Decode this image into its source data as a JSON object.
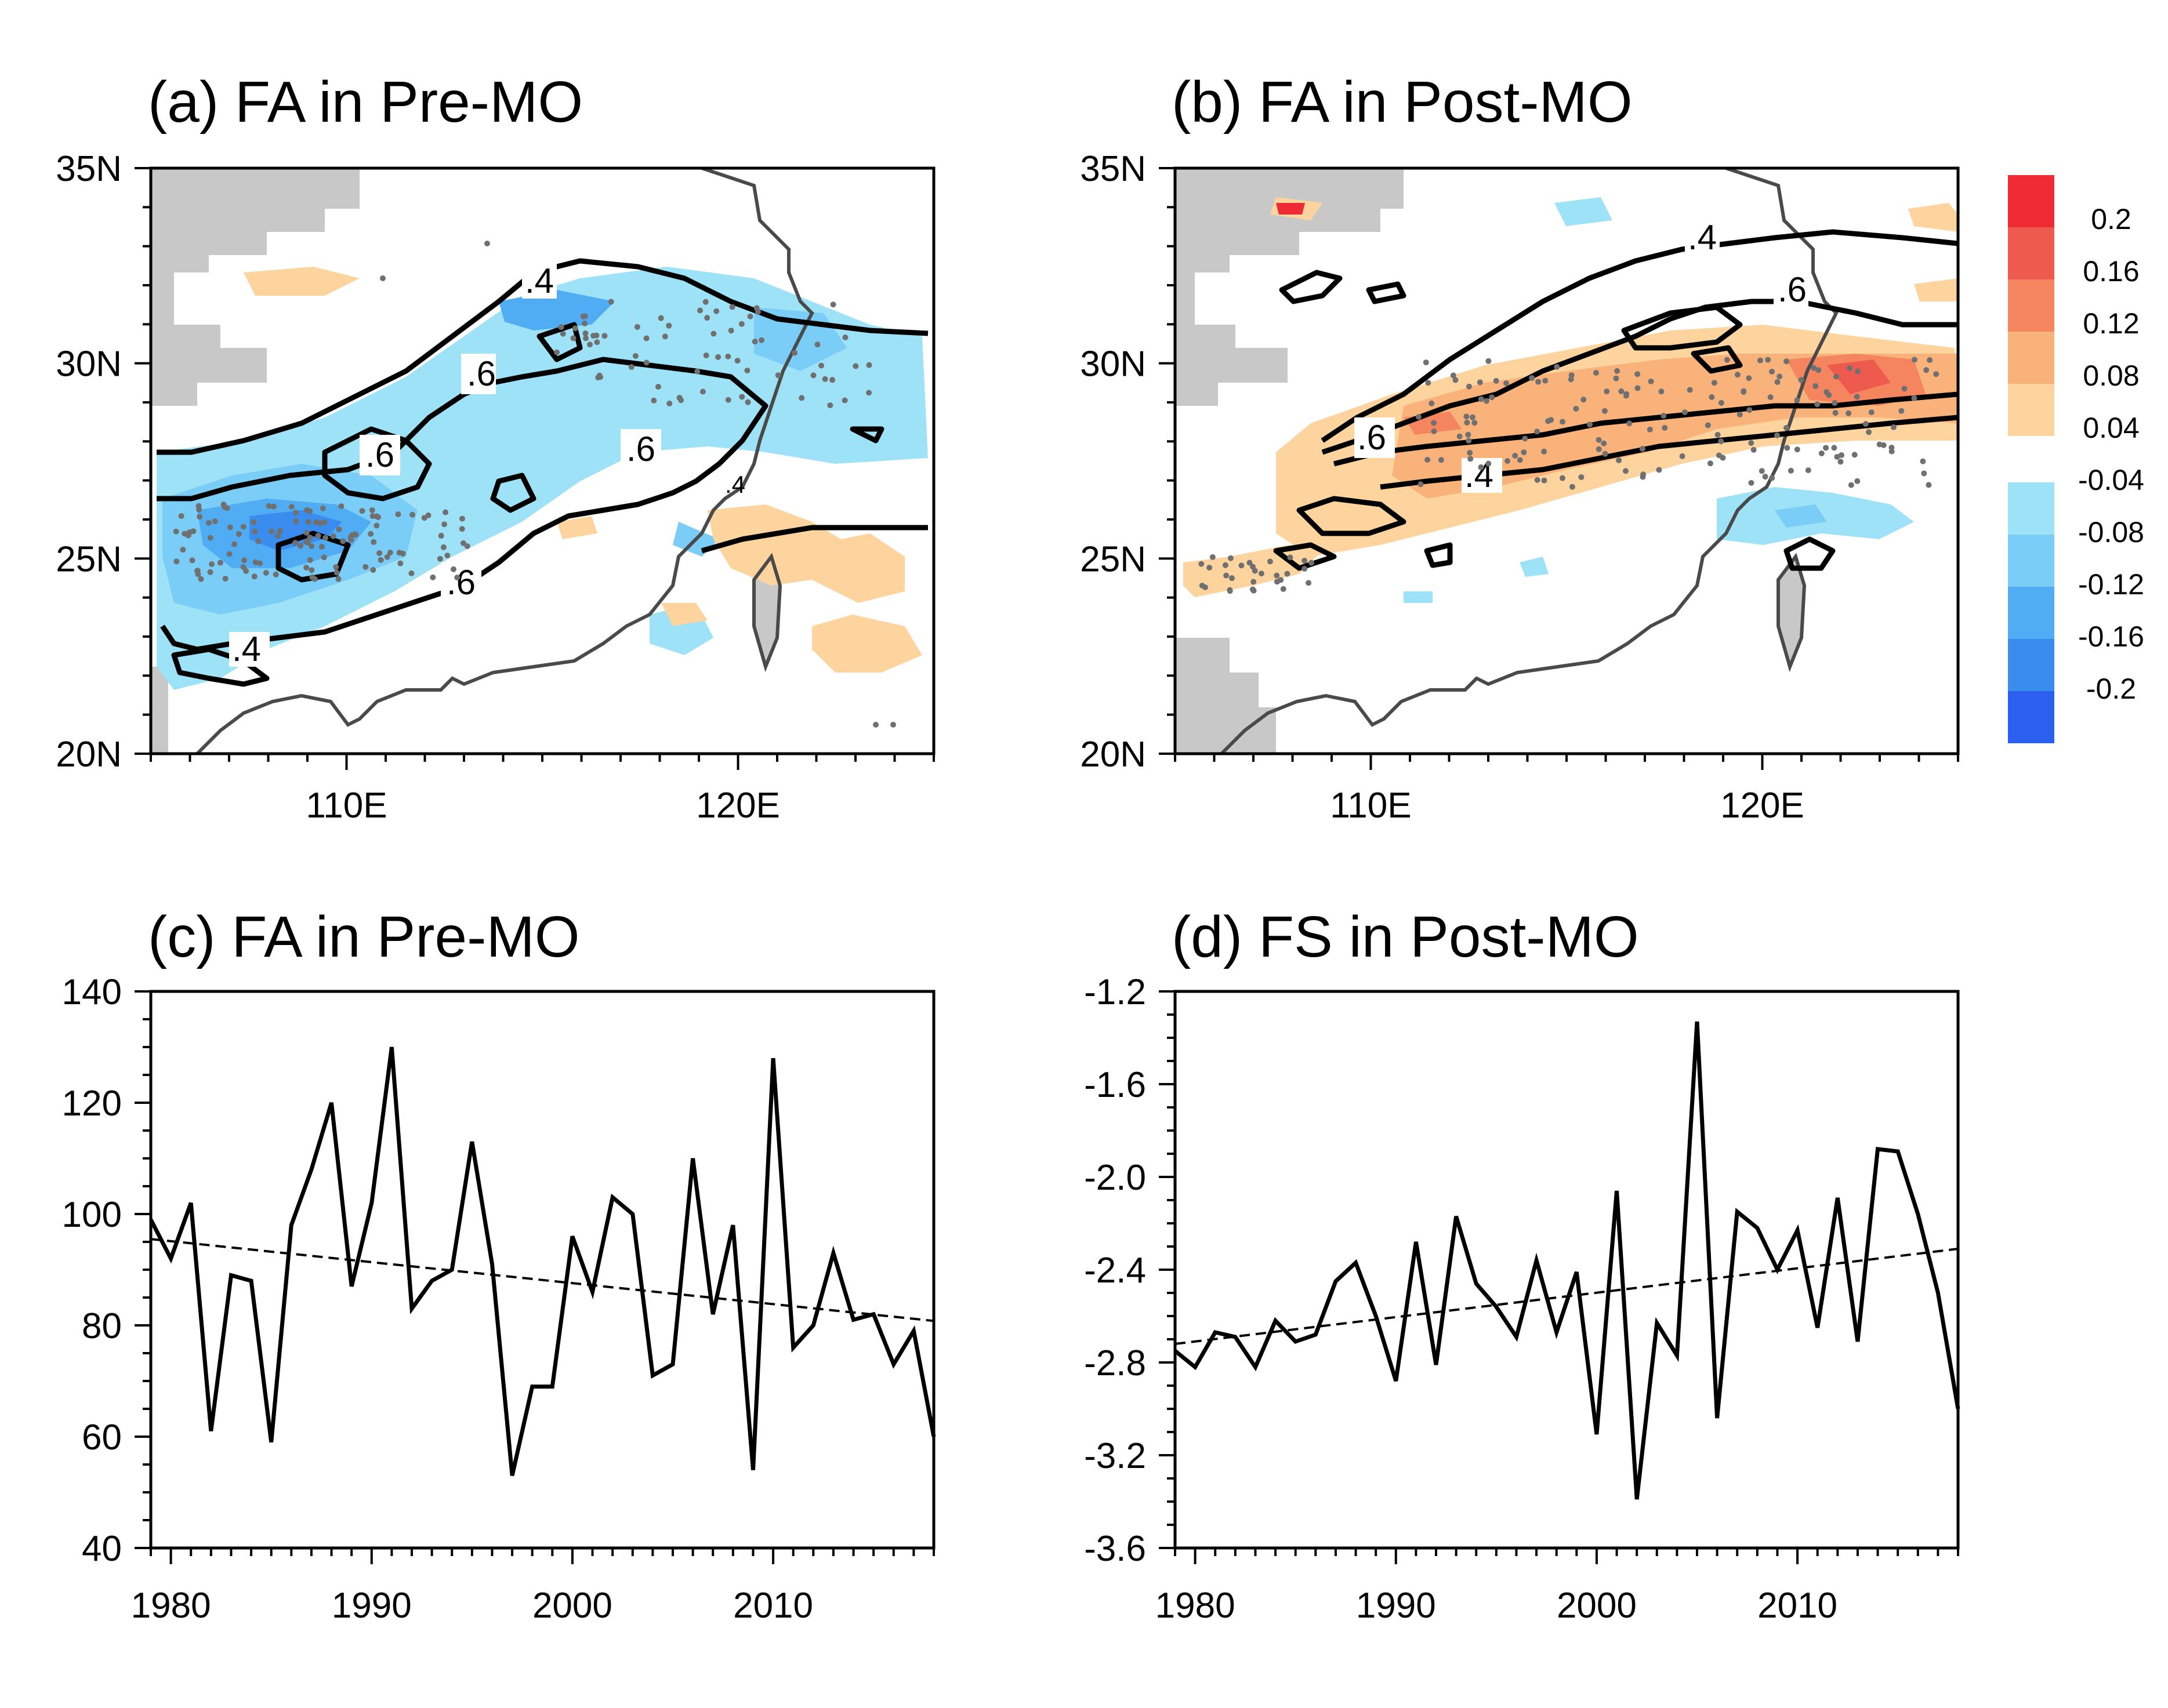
{
  "colors": {
    "land_mask": "#c8c8c8",
    "coast": "#4a4a4a",
    "contour": "#000000",
    "stipple": "#707070",
    "pos_scale": [
      "#fdd49e",
      "#f9b27a",
      "#f4855f",
      "#ef5a4f",
      "#ee2a34"
    ],
    "neg_scale": [
      "#9ee2f7",
      "#79cdf7",
      "#50adf4",
      "#3a8cef",
      "#2a5ff0"
    ]
  },
  "colorbar": {
    "labels": [
      "0.2",
      "0.16",
      "0.12",
      "0.08",
      "0.04",
      "-0.04",
      "-0.08",
      "-0.12",
      "-0.16",
      "-0.2"
    ]
  },
  "chart_data": [
    {
      "id": "a",
      "type": "heatmap",
      "title": "(a) FA in Pre-MO",
      "xlabel": "",
      "ylabel": "",
      "xlim": [
        105,
        125
      ],
      "ylim": [
        20,
        35
      ],
      "xticks": [
        "110E",
        "120E"
      ],
      "yticks": [
        "20N",
        "25N",
        "30N",
        "35N"
      ],
      "contour_labels": [
        ".4",
        ".6",
        ".6",
        ".6",
        ".6",
        ".4",
        ".4"
      ],
      "shading": "negative (blue) over southern China and Yangtze basin"
    },
    {
      "id": "b",
      "type": "heatmap",
      "title": "(b) FA in Post-MO",
      "xlabel": "",
      "ylabel": "",
      "xlim": [
        105,
        125
      ],
      "ylim": [
        20,
        35
      ],
      "xticks": [
        "110E",
        "120E"
      ],
      "yticks": [
        "20N",
        "25N",
        "30N",
        "35N"
      ],
      "contour_labels": [
        ".4",
        ".6",
        ".6",
        ".4"
      ],
      "shading": "positive (orange/red) band 26-30N"
    },
    {
      "id": "c",
      "type": "line",
      "title": "(c) FA in Pre-MO",
      "xlabel": "",
      "ylabel": "",
      "xlim": [
        1979,
        2018
      ],
      "ylim": [
        40,
        140
      ],
      "xticks": [
        "1980",
        "1990",
        "2000",
        "2010"
      ],
      "yticks": [
        "40",
        "60",
        "80",
        "100",
        "120",
        "140"
      ],
      "x": [
        1979,
        1980,
        1981,
        1982,
        1983,
        1984,
        1985,
        1986,
        1987,
        1988,
        1989,
        1990,
        1991,
        1992,
        1993,
        1994,
        1995,
        1996,
        1997,
        1998,
        1999,
        2000,
        2001,
        2002,
        2003,
        2004,
        2005,
        2006,
        2007,
        2008,
        2009,
        2010,
        2011,
        2012,
        2013,
        2014,
        2015,
        2016,
        2017,
        2018
      ],
      "series": [
        {
          "values": [
            99,
            92,
            102,
            61,
            89,
            88,
            59,
            98,
            108,
            120,
            87,
            102,
            130,
            83,
            88,
            90,
            113,
            91,
            53,
            69,
            69,
            96,
            86,
            103,
            100,
            71,
            73,
            110,
            82,
            98,
            54,
            128,
            76,
            80,
            93,
            81,
            82,
            73,
            79,
            60
          ]
        }
      ],
      "trend": [
        95.5,
        80.8
      ]
    },
    {
      "id": "d",
      "type": "line",
      "title": "(d) FS in Post-MO",
      "xlabel": "",
      "ylabel": "",
      "xlim": [
        1979,
        2018
      ],
      "ylim": [
        -3.6,
        -1.2
      ],
      "xticks": [
        "1980",
        "1990",
        "2000",
        "2010"
      ],
      "yticks": [
        "-1.2",
        "-1.6",
        "-2.0",
        "-2.4",
        "-2.8",
        "-3.2",
        "-3.6"
      ],
      "x": [
        1979,
        1980,
        1981,
        1982,
        1983,
        1984,
        1985,
        1986,
        1987,
        1988,
        1989,
        1990,
        1991,
        1992,
        1993,
        1994,
        1995,
        1996,
        1997,
        1998,
        1999,
        2000,
        2001,
        2002,
        2003,
        2004,
        2005,
        2006,
        2007,
        2008,
        2009,
        2010,
        2011,
        2012,
        2013,
        2014,
        2015,
        2016,
        2017,
        2018
      ],
      "series": [
        {
          "values": [
            -2.75,
            -2.82,
            -2.67,
            -2.69,
            -2.82,
            -2.62,
            -2.71,
            -2.68,
            -2.45,
            -2.37,
            -2.6,
            -2.88,
            -2.28,
            -2.81,
            -2.17,
            -2.46,
            -2.56,
            -2.69,
            -2.36,
            -2.67,
            -2.41,
            -3.11,
            -2.06,
            -3.39,
            -2.63,
            -2.77,
            -1.33,
            -3.04,
            -2.15,
            -2.22,
            -2.4,
            -2.23,
            -2.65,
            -2.09,
            -2.71,
            -1.88,
            -1.89,
            -2.16,
            -2.5,
            -3.0
          ]
        }
      ],
      "trend": [
        -2.72,
        -2.31
      ]
    }
  ]
}
